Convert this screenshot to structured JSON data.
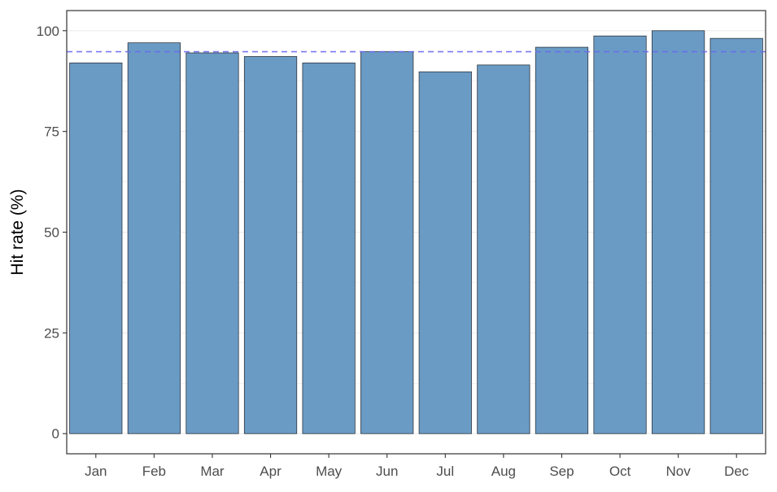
{
  "chart_data": {
    "type": "bar",
    "title": "",
    "xlabel": "",
    "ylabel": "Hit rate (%)",
    "categories": [
      "Jan",
      "Feb",
      "Mar",
      "Apr",
      "May",
      "Jun",
      "Jul",
      "Aug",
      "Sep",
      "Oct",
      "Nov",
      "Dec"
    ],
    "values": [
      92,
      97,
      94.5,
      93.6,
      92,
      94.8,
      89.8,
      91.5,
      95.9,
      98.7,
      100,
      98.1
    ],
    "ylim": [
      -5,
      105
    ],
    "yticks": [
      0,
      25,
      50,
      75,
      100
    ],
    "reference_line": {
      "value": 94.8,
      "style": "dashed"
    },
    "grid": true,
    "legend": "none",
    "colors": {
      "bar_fill": "#6a9bc4",
      "bar_stroke": "#2f3640",
      "reference_line": "#6b6bf0",
      "grid": "#ebebeb",
      "panel_border": "#333333"
    }
  }
}
